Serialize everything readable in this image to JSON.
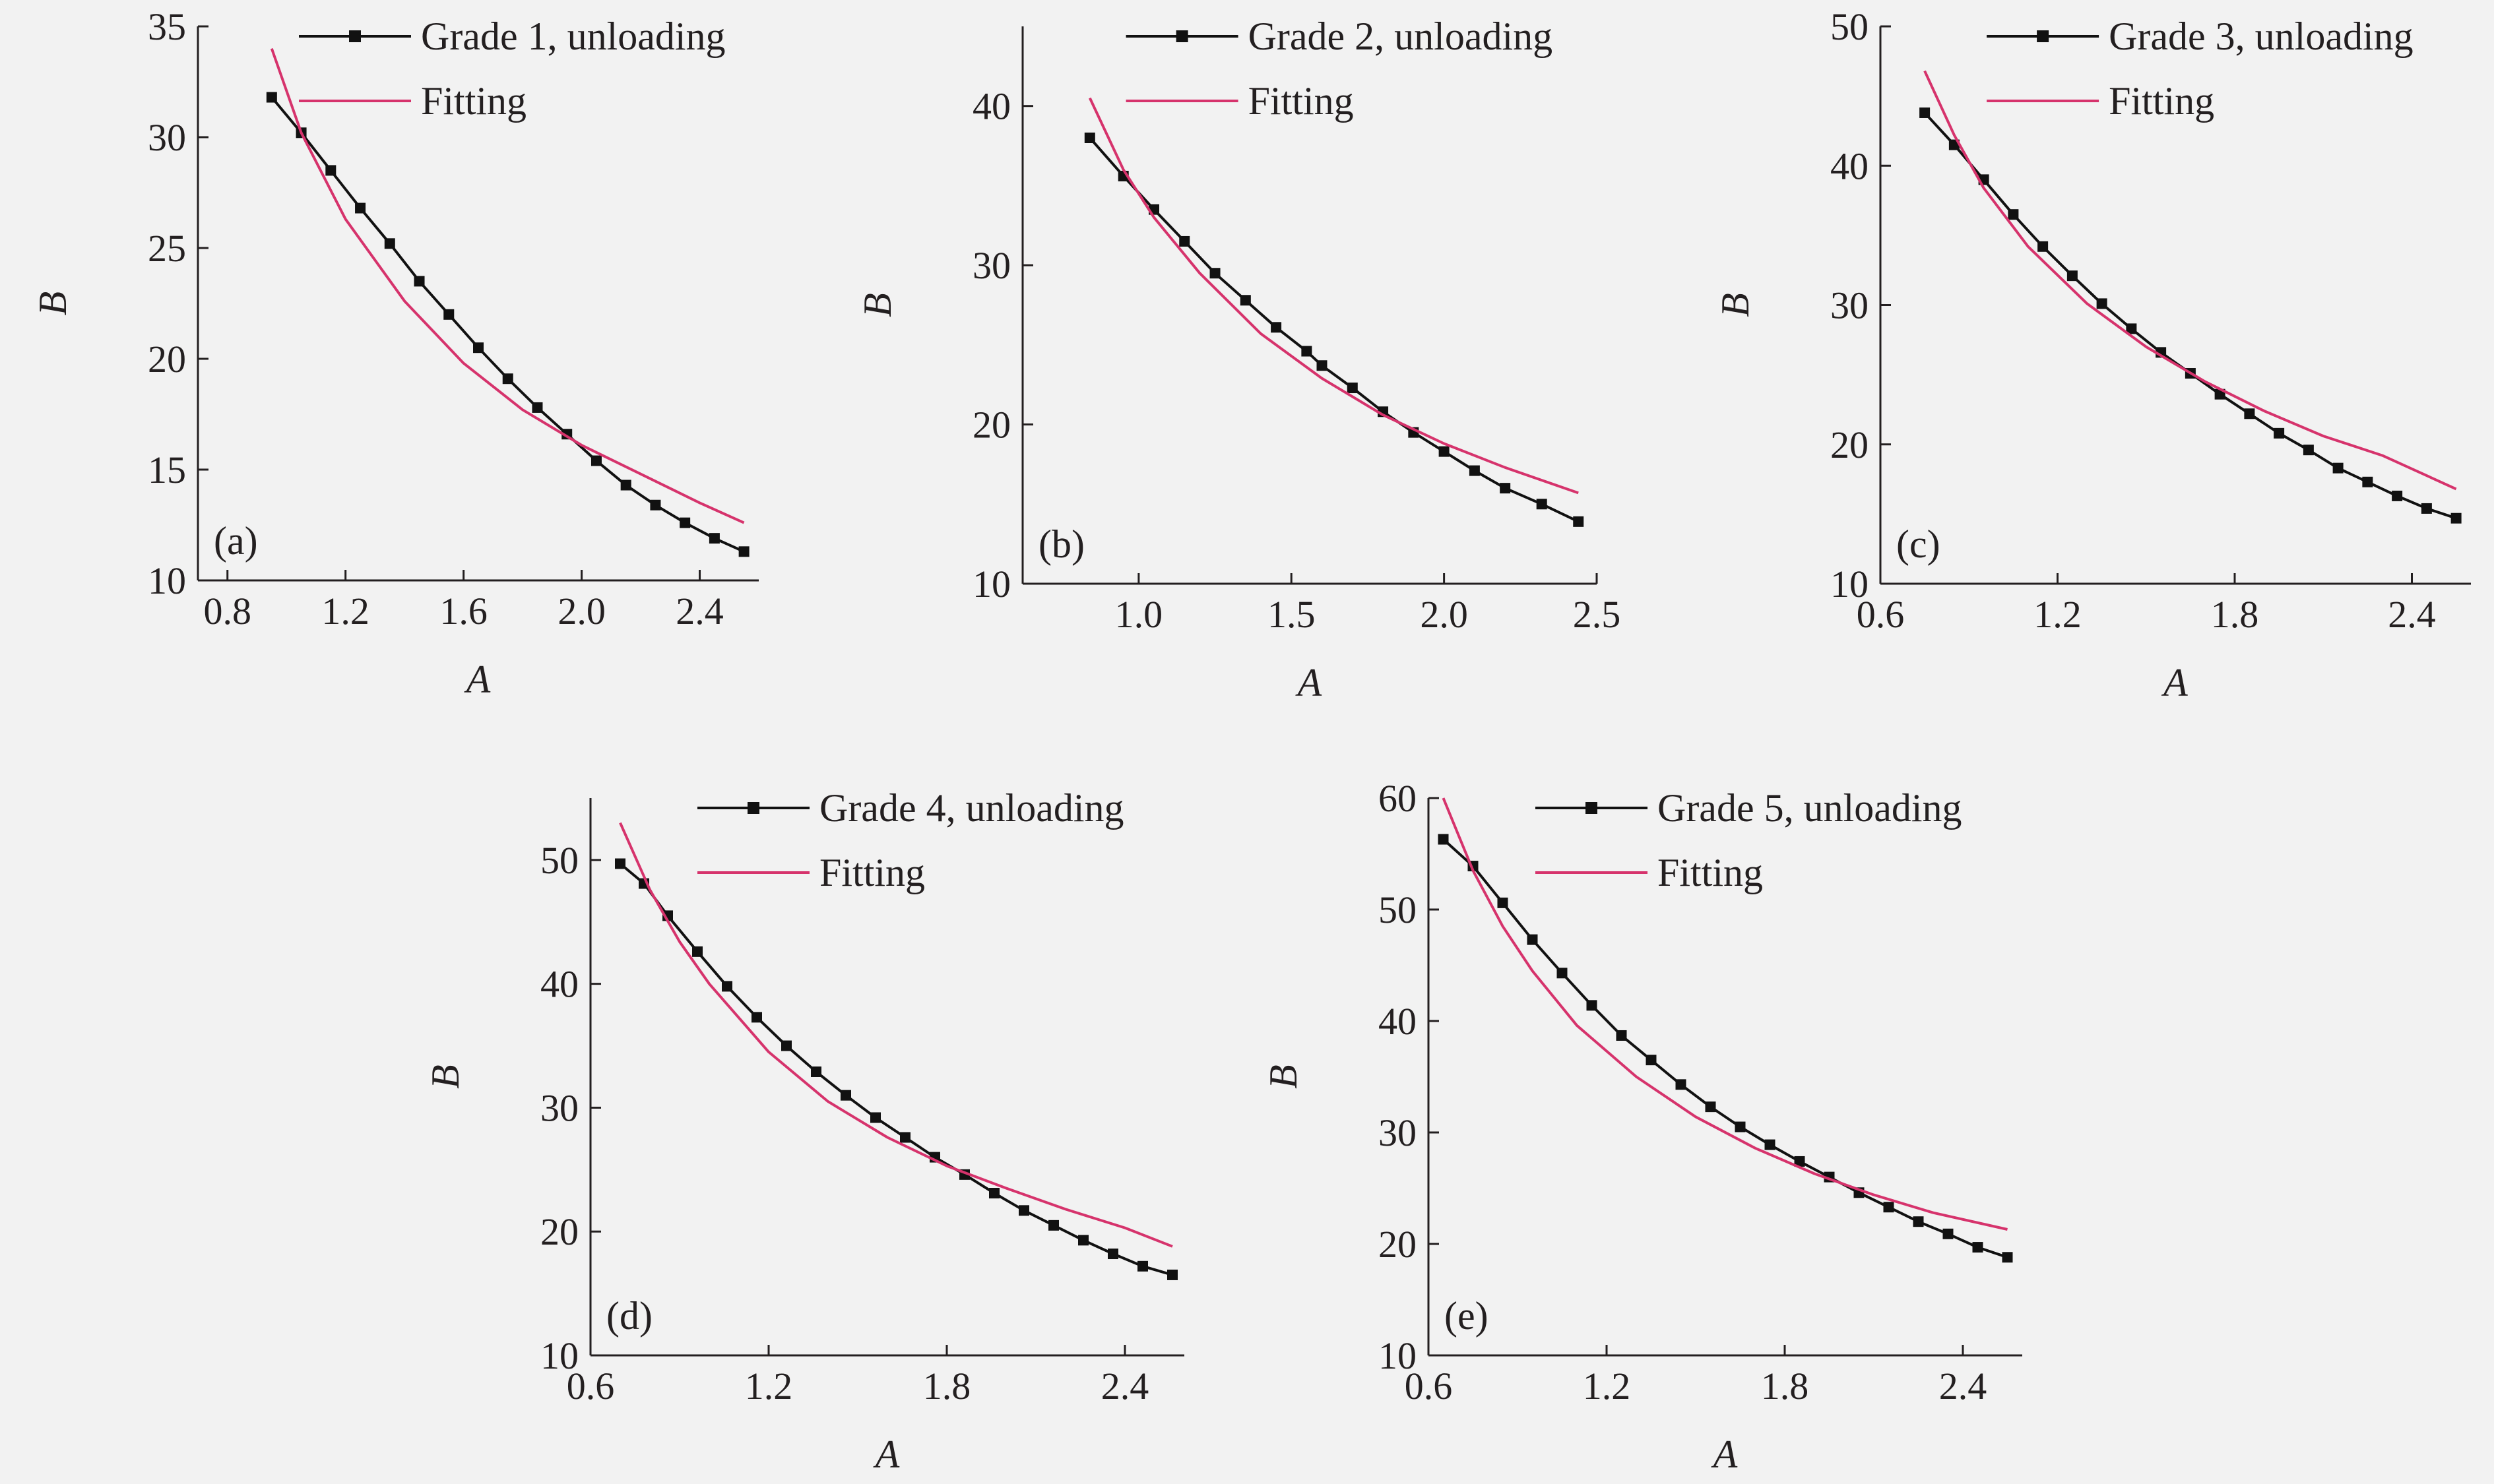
{
  "figure": {
    "colors": {
      "background": "#f2f2f2",
      "axis": "#231f20",
      "data_series": "#111111",
      "fitting": "#d6336c"
    }
  },
  "chart_data": [
    {
      "panel": "(a)",
      "type": "line",
      "xlabel": "A",
      "ylabel": "B",
      "xlim": [
        0.7,
        2.6
      ],
      "ylim": [
        10,
        35
      ],
      "xticks": [
        "0.8",
        "1.2",
        "1.6",
        "2.0",
        "2.4"
      ],
      "yticks": [
        "10",
        "15",
        "20",
        "25",
        "30",
        "35"
      ],
      "legend_position": "top-right",
      "series": [
        {
          "name": "Grade 1, unloading",
          "style": "line-with-square-markers",
          "x": [
            0.95,
            1.05,
            1.15,
            1.25,
            1.35,
            1.45,
            1.55,
            1.65,
            1.75,
            1.85,
            1.95,
            2.05,
            2.15,
            2.25,
            2.35,
            2.45,
            2.55
          ],
          "y": [
            31.8,
            30.2,
            28.5,
            26.8,
            25.2,
            23.5,
            22.0,
            20.5,
            19.1,
            17.8,
            16.6,
            15.4,
            14.3,
            13.4,
            12.6,
            11.9,
            11.3
          ]
        },
        {
          "name": "Fitting",
          "style": "line",
          "x": [
            0.95,
            1.05,
            1.2,
            1.4,
            1.6,
            1.8,
            2.0,
            2.2,
            2.4,
            2.55
          ],
          "y": [
            34.0,
            30.2,
            26.3,
            22.6,
            19.8,
            17.7,
            16.1,
            14.8,
            13.5,
            12.6
          ]
        }
      ]
    },
    {
      "panel": "(b)",
      "type": "line",
      "xlabel": "A",
      "ylabel": "B",
      "xlim": [
        0.62,
        2.5
      ],
      "ylim": [
        10,
        45
      ],
      "xticks": [
        "1.0",
        "1.5",
        "2.0",
        "2.5"
      ],
      "yticks": [
        "10",
        "20",
        "30",
        "40"
      ],
      "legend_position": "top-right",
      "series": [
        {
          "name": "Grade 2, unloading",
          "style": "line-with-square-markers",
          "x": [
            0.84,
            0.95,
            1.05,
            1.15,
            1.25,
            1.35,
            1.45,
            1.55,
            1.6,
            1.7,
            1.8,
            1.9,
            2.0,
            2.1,
            2.2,
            2.32,
            2.44
          ],
          "y": [
            38.0,
            35.6,
            33.5,
            31.5,
            29.5,
            27.8,
            26.1,
            24.6,
            23.7,
            22.3,
            20.8,
            19.5,
            18.3,
            17.1,
            16.0,
            15.0,
            13.9
          ]
        },
        {
          "name": "Fitting",
          "style": "line",
          "x": [
            0.84,
            0.95,
            1.05,
            1.2,
            1.4,
            1.6,
            1.8,
            2.0,
            2.2,
            2.44
          ],
          "y": [
            40.5,
            36.0,
            33.0,
            29.5,
            25.7,
            22.9,
            20.6,
            18.8,
            17.3,
            15.7
          ]
        }
      ]
    },
    {
      "panel": "(c)",
      "type": "line",
      "xlabel": "A",
      "ylabel": "B",
      "xlim": [
        0.6,
        2.6
      ],
      "ylim": [
        10,
        50
      ],
      "xticks": [
        "0.6",
        "1.2",
        "1.8",
        "2.4"
      ],
      "yticks": [
        "10",
        "20",
        "30",
        "40",
        "50"
      ],
      "legend_position": "top-right",
      "series": [
        {
          "name": "Grade 3, unloading",
          "style": "line-with-square-markers",
          "x": [
            0.75,
            0.85,
            0.95,
            1.05,
            1.15,
            1.25,
            1.35,
            1.45,
            1.55,
            1.65,
            1.75,
            1.85,
            1.95,
            2.05,
            2.15,
            2.25,
            2.35,
            2.45,
            2.55
          ],
          "y": [
            43.8,
            41.5,
            39.0,
            36.5,
            34.2,
            32.1,
            30.1,
            28.3,
            26.6,
            25.1,
            23.6,
            22.2,
            20.8,
            19.6,
            18.3,
            17.3,
            16.3,
            15.4,
            14.7
          ]
        },
        {
          "name": "Fitting",
          "style": "line",
          "x": [
            0.75,
            0.85,
            0.95,
            1.1,
            1.3,
            1.5,
            1.7,
            1.9,
            2.1,
            2.3,
            2.55
          ],
          "y": [
            46.8,
            42.2,
            38.4,
            34.2,
            30.1,
            27.0,
            24.5,
            22.4,
            20.6,
            19.2,
            16.8
          ]
        }
      ]
    },
    {
      "panel": "(d)",
      "type": "line",
      "xlabel": "A",
      "ylabel": "B",
      "xlim": [
        0.6,
        2.6
      ],
      "ylim": [
        10,
        55
      ],
      "xticks": [
        "0.6",
        "1.2",
        "1.8",
        "2.4"
      ],
      "yticks": [
        "10",
        "20",
        "30",
        "40",
        "50"
      ],
      "legend_position": "top-right",
      "series": [
        {
          "name": "Grade 4, unloading",
          "style": "line-with-square-markers",
          "x": [
            0.7,
            0.78,
            0.86,
            0.96,
            1.06,
            1.16,
            1.26,
            1.36,
            1.46,
            1.56,
            1.66,
            1.76,
            1.86,
            1.96,
            2.06,
            2.16,
            2.26,
            2.36,
            2.46,
            2.56
          ],
          "y": [
            49.7,
            48.1,
            45.5,
            42.6,
            39.8,
            37.3,
            35.0,
            32.9,
            31.0,
            29.2,
            27.6,
            26.0,
            24.6,
            23.1,
            21.7,
            20.5,
            19.3,
            18.2,
            17.2,
            16.5
          ]
        },
        {
          "name": "Fitting",
          "style": "line",
          "x": [
            0.7,
            0.8,
            0.9,
            1.0,
            1.2,
            1.4,
            1.6,
            1.8,
            2.0,
            2.2,
            2.4,
            2.56
          ],
          "y": [
            53.0,
            47.6,
            43.4,
            40.0,
            34.5,
            30.5,
            27.6,
            25.3,
            23.5,
            21.8,
            20.3,
            18.8
          ]
        }
      ]
    },
    {
      "panel": "(e)",
      "type": "line",
      "xlabel": "A",
      "ylabel": "B",
      "xlim": [
        0.6,
        2.6
      ],
      "ylim": [
        10,
        60
      ],
      "xticks": [
        "0.6",
        "1.2",
        "1.8",
        "2.4"
      ],
      "yticks": [
        "10",
        "20",
        "30",
        "40",
        "50",
        "60"
      ],
      "legend_position": "top-right",
      "series": [
        {
          "name": "Grade 5, unloading",
          "style": "line-with-square-markers",
          "x": [
            0.65,
            0.75,
            0.85,
            0.95,
            1.05,
            1.15,
            1.25,
            1.35,
            1.45,
            1.55,
            1.65,
            1.75,
            1.85,
            1.95,
            2.05,
            2.15,
            2.25,
            2.35,
            2.45,
            2.55
          ],
          "y": [
            56.3,
            53.9,
            50.6,
            47.3,
            44.3,
            41.4,
            38.7,
            36.5,
            34.3,
            32.3,
            30.5,
            28.9,
            27.4,
            26.0,
            24.6,
            23.3,
            22.0,
            20.9,
            19.7,
            18.8
          ]
        },
        {
          "name": "Fitting",
          "style": "line",
          "x": [
            0.65,
            0.75,
            0.85,
            0.95,
            1.1,
            1.3,
            1.5,
            1.7,
            1.9,
            2.1,
            2.3,
            2.55
          ],
          "y": [
            60.0,
            53.5,
            48.5,
            44.5,
            39.6,
            35.0,
            31.4,
            28.6,
            26.3,
            24.4,
            22.8,
            21.3
          ]
        }
      ]
    }
  ]
}
